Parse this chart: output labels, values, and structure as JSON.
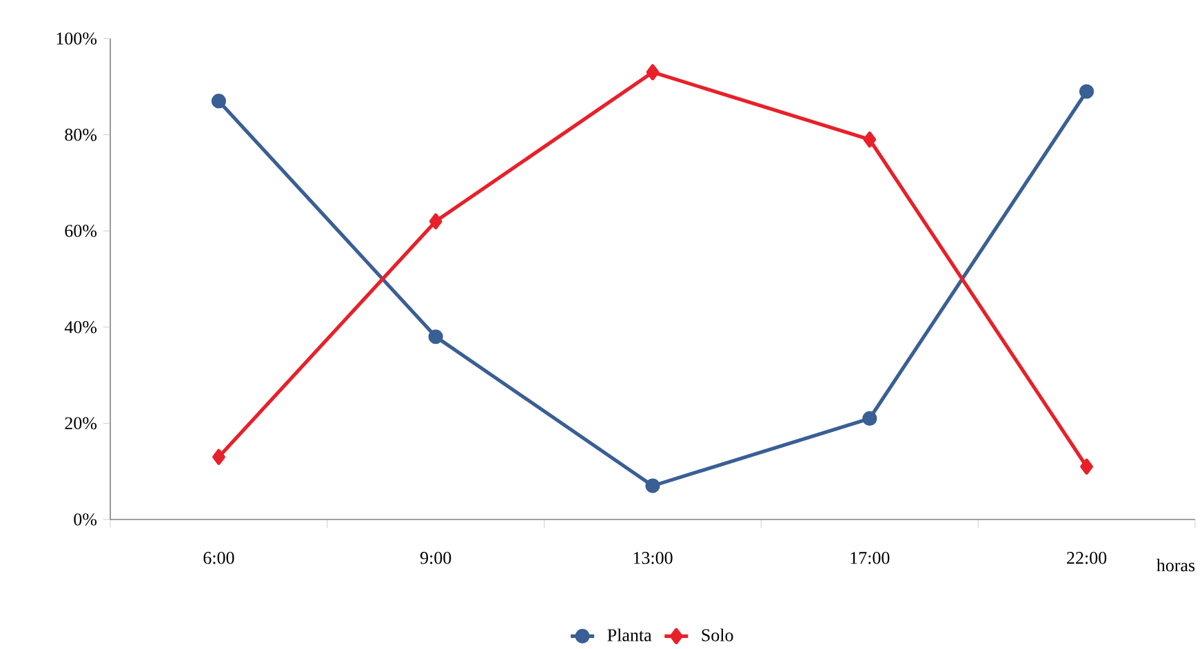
{
  "chart_data": {
    "type": "line",
    "xlabel": "horas",
    "categories": [
      "6:00",
      "9:00",
      "13:00",
      "17:00",
      "22:00"
    ],
    "ylim": [
      0,
      100
    ],
    "yticks": [
      {
        "value": 0,
        "label": "0%"
      },
      {
        "value": 20,
        "label": "20%"
      },
      {
        "value": 40,
        "label": "40%"
      },
      {
        "value": 60,
        "label": "60%"
      },
      {
        "value": 80,
        "label": "80%"
      },
      {
        "value": 100,
        "label": "100%"
      }
    ],
    "series": [
      {
        "name": "Planta",
        "color": "#3a5f94",
        "marker": "circle",
        "values": [
          87,
          38,
          7,
          21,
          89
        ]
      },
      {
        "name": "Solo",
        "color": "#e8202a",
        "marker": "diamond",
        "values": [
          13,
          62,
          93,
          79,
          11
        ]
      }
    ],
    "grid": false,
    "legend": "bottom",
    "line_style": "solid"
  }
}
